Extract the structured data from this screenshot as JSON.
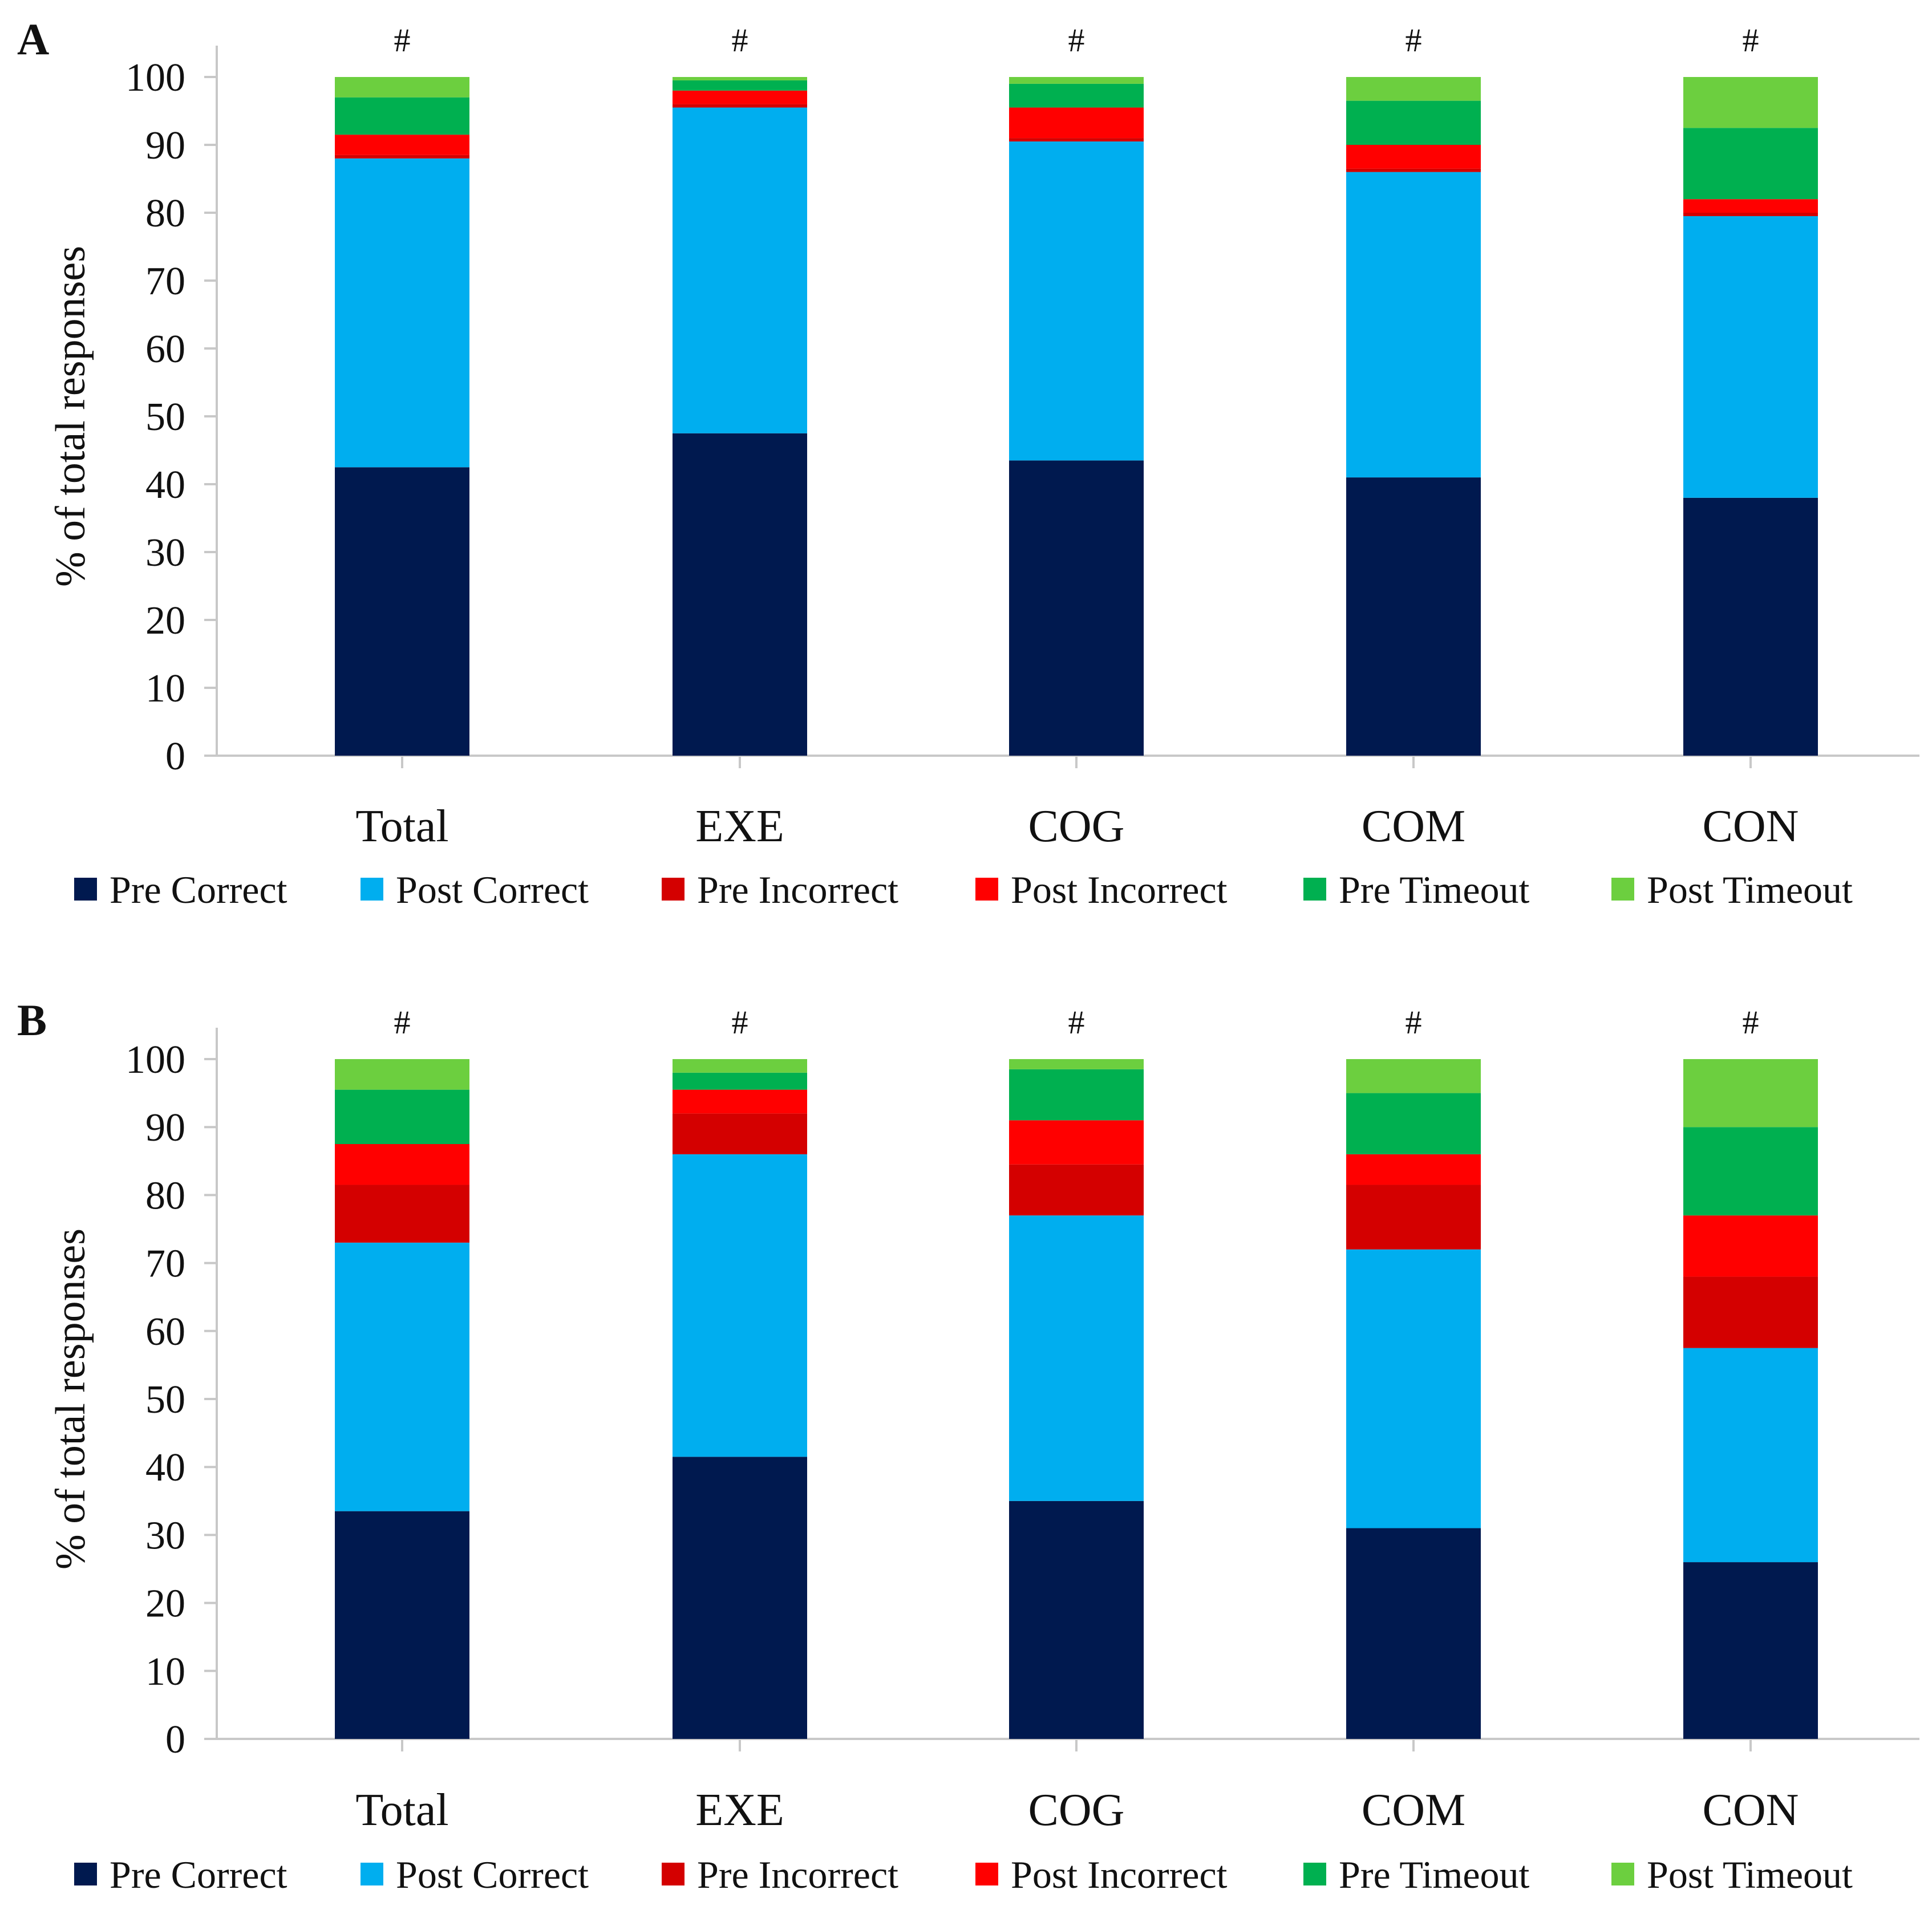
{
  "chart_data": [
    {
      "type": "bar",
      "stacked": true,
      "panel": "A",
      "title": "",
      "xlabel": "",
      "ylabel": "% of total responses",
      "ylim": [
        0,
        100
      ],
      "yticks": [
        "0",
        "10",
        "20",
        "30",
        "40",
        "50",
        "60",
        "70",
        "80",
        "90",
        "100"
      ],
      "categories": [
        "Total",
        "EXE",
        "COG",
        "COM",
        "CON"
      ],
      "top_marks": [
        "#",
        "#",
        "#",
        "#",
        "#"
      ],
      "series": [
        {
          "name": "Pre Correct",
          "color": "#00194f",
          "values": [
            42.5,
            47.5,
            43.5,
            41.0,
            38.0
          ]
        },
        {
          "name": "Post Correct",
          "color": "#00aeef",
          "values": [
            45.5,
            48.0,
            47.0,
            45.0,
            41.5
          ]
        },
        {
          "name": "Pre Incorrect",
          "color": "#d40000",
          "values": [
            0.5,
            0.5,
            0.5,
            0.5,
            0.5
          ]
        },
        {
          "name": "Post Incorrect",
          "color": "#ff0000",
          "values": [
            3.0,
            2.0,
            4.5,
            3.5,
            2.0
          ]
        },
        {
          "name": "Pre Timeout",
          "color": "#00b050",
          "values": [
            5.5,
            1.5,
            3.5,
            6.5,
            10.5
          ]
        },
        {
          "name": "Post Timeout",
          "color": "#6ccf3f",
          "values": [
            3.0,
            0.5,
            1.0,
            3.5,
            7.5
          ]
        }
      ],
      "legend": "bottom"
    },
    {
      "type": "bar",
      "stacked": true,
      "panel": "B",
      "title": "",
      "xlabel": "",
      "ylabel": "% of total responses",
      "ylim": [
        0,
        100
      ],
      "yticks": [
        "0",
        "10",
        "20",
        "30",
        "40",
        "50",
        "60",
        "70",
        "80",
        "90",
        "100"
      ],
      "categories": [
        "Total",
        "EXE",
        "COG",
        "COM",
        "CON"
      ],
      "top_marks": [
        "#",
        "#",
        "#",
        "#",
        "#"
      ],
      "series": [
        {
          "name": "Pre Correct",
          "color": "#00194f",
          "values": [
            33.5,
            41.5,
            35.0,
            31.0,
            26.0
          ]
        },
        {
          "name": "Post Correct",
          "color": "#00aeef",
          "values": [
            39.5,
            44.5,
            42.0,
            41.0,
            31.5
          ]
        },
        {
          "name": "Pre Incorrect",
          "color": "#d40000",
          "values": [
            8.5,
            6.0,
            7.5,
            9.5,
            10.5
          ]
        },
        {
          "name": "Post Incorrect",
          "color": "#ff0000",
          "values": [
            6.0,
            3.5,
            6.5,
            4.5,
            9.0
          ]
        },
        {
          "name": "Pre Timeout",
          "color": "#00b050",
          "values": [
            8.0,
            2.5,
            7.5,
            9.0,
            13.0
          ]
        },
        {
          "name": "Post Timeout",
          "color": "#6ccf3f",
          "values": [
            4.5,
            2.0,
            1.5,
            5.0,
            10.0
          ]
        }
      ],
      "legend": "bottom"
    }
  ]
}
